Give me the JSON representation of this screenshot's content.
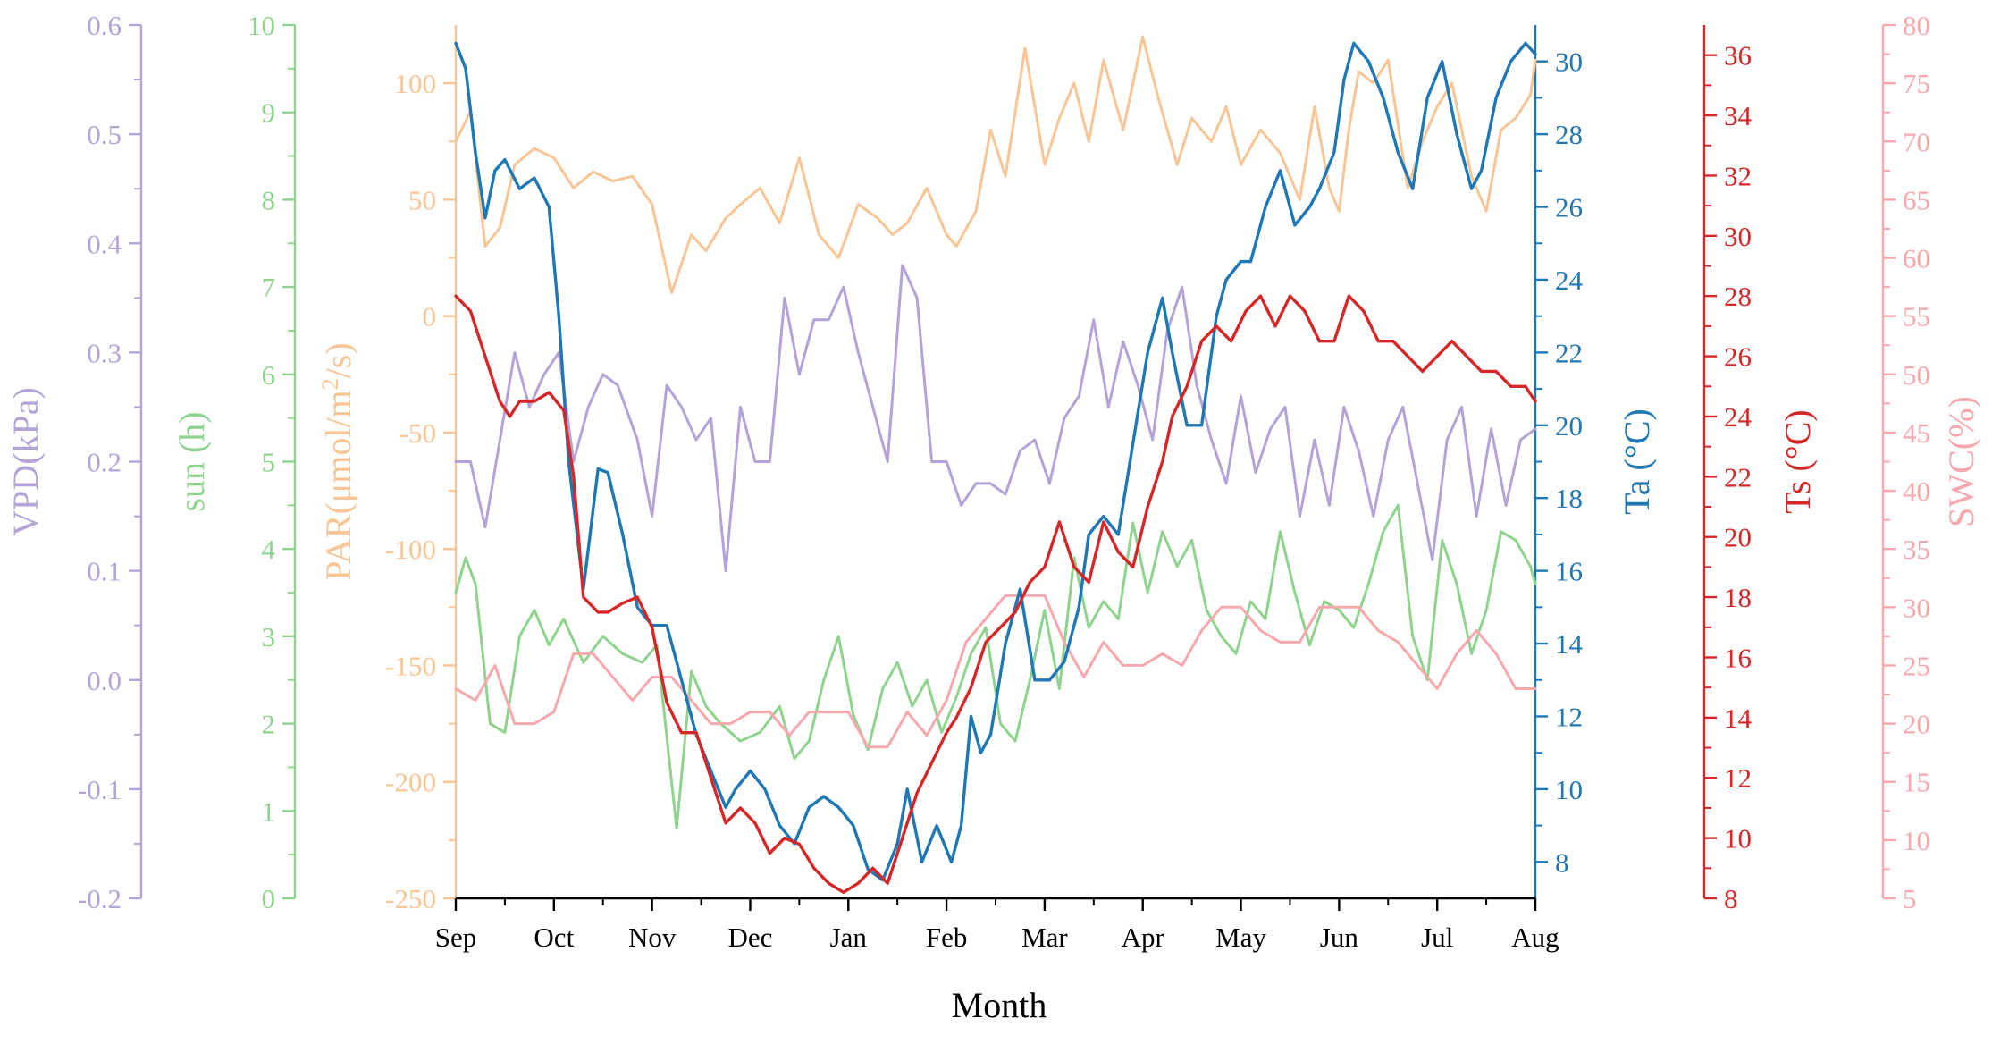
{
  "chart_data": {
    "type": "line",
    "title": "",
    "xlabel": "Month",
    "x_categories": [
      "Sep",
      "Oct",
      "Nov",
      "Dec",
      "Jan",
      "Feb",
      "Mar",
      "Apr",
      "May",
      "Jun",
      "Jul",
      "Aug"
    ],
    "x_range": [
      0,
      11
    ],
    "axes": [
      {
        "id": "vpd",
        "label": "VPD(kPa)",
        "label_parts": [
          "VPD(kPa)"
        ],
        "color": "#b3a3d6",
        "ylim": [
          -0.2,
          0.6
        ],
        "ticks": [
          -0.2,
          -0.1,
          0.0,
          0.1,
          0.2,
          0.3,
          0.4,
          0.5,
          0.6
        ],
        "tick_labels": [
          "-0.2",
          "-0.1",
          "0.0",
          "0.1",
          "0.2",
          "0.3",
          "0.4",
          "0.5",
          "0.6"
        ]
      },
      {
        "id": "sun",
        "label": "sun (h)",
        "label_parts": [
          "sun (h)"
        ],
        "color": "#8fd38f",
        "ylim": [
          0,
          10
        ],
        "ticks": [
          0,
          1,
          2,
          3,
          4,
          5,
          6,
          7,
          8,
          9,
          10
        ],
        "tick_labels": [
          "0",
          "1",
          "2",
          "3",
          "4",
          "5",
          "6",
          "7",
          "8",
          "9",
          "10"
        ]
      },
      {
        "id": "par",
        "label": "PAR(μmol/m2/s)",
        "label_parts": [
          "PAR(μmol/m",
          "2",
          "/s)"
        ],
        "color": "#f8c596",
        "ylim": [
          -250,
          125
        ],
        "ticks": [
          -250,
          -200,
          -150,
          -100,
          -50,
          0,
          50,
          100
        ],
        "tick_labels": [
          "-250",
          "-200",
          "-150",
          "-100",
          "-50",
          "0",
          "50",
          "100"
        ]
      },
      {
        "id": "ta",
        "label": "Ta (°C)",
        "label_parts": [
          "Ta (°C)"
        ],
        "color": "#1f77b4",
        "ylim": [
          7,
          31
        ],
        "ticks": [
          8,
          10,
          12,
          14,
          16,
          18,
          20,
          22,
          24,
          26,
          28,
          30
        ],
        "tick_labels": [
          "8",
          "10",
          "12",
          "14",
          "16",
          "18",
          "20",
          "22",
          "24",
          "26",
          "28",
          "30"
        ]
      },
      {
        "id": "ts",
        "label": "Ts (°C)",
        "label_parts": [
          "Ts (°C)"
        ],
        "color": "#d62728",
        "ylim": [
          8,
          37
        ],
        "ticks": [
          8,
          10,
          12,
          14,
          16,
          18,
          20,
          22,
          24,
          26,
          28,
          30,
          32,
          34,
          36
        ],
        "tick_labels": [
          "8",
          "10",
          "12",
          "14",
          "16",
          "18",
          "20",
          "22",
          "24",
          "26",
          "28",
          "30",
          "32",
          "34",
          "36"
        ]
      },
      {
        "id": "swc",
        "label": "SWC(%)",
        "label_parts": [
          "SWC(%)"
        ],
        "color": "#f6a8ad",
        "ylim": [
          5,
          80
        ],
        "ticks": [
          5,
          10,
          15,
          20,
          25,
          30,
          35,
          40,
          45,
          50,
          55,
          60,
          65,
          70,
          75,
          80
        ],
        "tick_labels": [
          "5",
          "10",
          "15",
          "20",
          "25",
          "30",
          "35",
          "40",
          "45",
          "50",
          "55",
          "60",
          "65",
          "70",
          "75",
          "80"
        ]
      }
    ],
    "series": [
      {
        "name": "PAR",
        "axis": "par",
        "color": "#f8c596",
        "x": [
          0,
          0.15,
          0.3,
          0.45,
          0.6,
          0.8,
          1.0,
          1.2,
          1.4,
          1.6,
          1.8,
          2.0,
          2.2,
          2.4,
          2.55,
          2.75,
          2.9,
          3.1,
          3.3,
          3.5,
          3.7,
          3.9,
          4.1,
          4.3,
          4.45,
          4.6,
          4.8,
          5.0,
          5.1,
          5.3,
          5.45,
          5.6,
          5.8,
          6.0,
          6.15,
          6.3,
          6.45,
          6.6,
          6.8,
          7.0,
          7.15,
          7.35,
          7.5,
          7.7,
          7.85,
          8.0,
          8.2,
          8.4,
          8.6,
          8.75,
          8.9,
          9.0,
          9.1,
          9.2,
          9.35,
          9.5,
          9.7,
          9.85,
          10.0,
          10.15,
          10.35,
          10.5,
          10.65,
          10.8,
          10.95,
          11.0
        ],
        "values": [
          75,
          88,
          30,
          38,
          65,
          72,
          68,
          55,
          62,
          58,
          60,
          48,
          10,
          35,
          28,
          42,
          48,
          55,
          40,
          68,
          35,
          25,
          48,
          42,
          35,
          40,
          55,
          35,
          30,
          45,
          80,
          60,
          115,
          65,
          85,
          100,
          75,
          110,
          80,
          120,
          95,
          65,
          85,
          75,
          90,
          65,
          80,
          70,
          50,
          90,
          55,
          45,
          80,
          105,
          100,
          110,
          55,
          75,
          90,
          100,
          60,
          45,
          80,
          85,
          95,
          110
        ]
      },
      {
        "name": "sun (h)",
        "axis": "sun",
        "color": "#8fd38f",
        "x": [
          0,
          0.1,
          0.2,
          0.35,
          0.5,
          0.65,
          0.8,
          0.95,
          1.1,
          1.3,
          1.5,
          1.7,
          1.9,
          2.05,
          2.25,
          2.4,
          2.55,
          2.7,
          2.9,
          3.1,
          3.3,
          3.45,
          3.6,
          3.75,
          3.9,
          4.05,
          4.2,
          4.35,
          4.5,
          4.65,
          4.8,
          4.95,
          5.1,
          5.25,
          5.4,
          5.55,
          5.7,
          5.85,
          6.0,
          6.15,
          6.3,
          6.45,
          6.6,
          6.75,
          6.9,
          7.05,
          7.2,
          7.35,
          7.5,
          7.65,
          7.8,
          7.95,
          8.1,
          8.25,
          8.4,
          8.55,
          8.7,
          8.85,
          9.0,
          9.15,
          9.3,
          9.45,
          9.6,
          9.75,
          9.9,
          10.05,
          10.2,
          10.35,
          10.5,
          10.65,
          10.8,
          10.95,
          11.0
        ],
        "values": [
          3.5,
          3.9,
          3.6,
          2.0,
          1.9,
          3.0,
          3.3,
          2.9,
          3.2,
          2.7,
          3.0,
          2.8,
          2.7,
          2.9,
          0.8,
          2.6,
          2.2,
          2.0,
          1.8,
          1.9,
          2.2,
          1.6,
          1.8,
          2.5,
          3.0,
          2.1,
          1.7,
          2.4,
          2.7,
          2.2,
          2.5,
          1.9,
          2.3,
          2.8,
          3.1,
          2.0,
          1.8,
          2.5,
          3.3,
          2.4,
          3.9,
          3.1,
          3.4,
          3.2,
          4.3,
          3.5,
          4.2,
          3.8,
          4.1,
          3.3,
          3.0,
          2.8,
          3.4,
          3.2,
          4.2,
          3.5,
          2.9,
          3.4,
          3.3,
          3.1,
          3.6,
          4.2,
          4.5,
          3.0,
          2.5,
          4.1,
          3.6,
          2.8,
          3.3,
          4.2,
          4.1,
          3.8,
          3.6
        ]
      },
      {
        "name": "VPD",
        "axis": "vpd",
        "color": "#b3a3d6",
        "x": [
          0,
          0.15,
          0.3,
          0.45,
          0.6,
          0.75,
          0.9,
          1.05,
          1.2,
          1.35,
          1.5,
          1.65,
          1.85,
          2.0,
          2.15,
          2.3,
          2.45,
          2.6,
          2.75,
          2.9,
          3.05,
          3.2,
          3.35,
          3.5,
          3.65,
          3.8,
          3.95,
          4.1,
          4.25,
          4.4,
          4.55,
          4.7,
          4.85,
          5.0,
          5.15,
          5.3,
          5.45,
          5.6,
          5.75,
          5.9,
          6.05,
          6.2,
          6.35,
          6.5,
          6.65,
          6.8,
          6.95,
          7.1,
          7.25,
          7.4,
          7.55,
          7.7,
          7.85,
          8.0,
          8.15,
          8.3,
          8.45,
          8.6,
          8.75,
          8.9,
          9.05,
          9.2,
          9.35,
          9.5,
          9.65,
          9.8,
          9.95,
          10.1,
          10.25,
          10.4,
          10.55,
          10.7,
          10.85,
          11.0
        ],
        "values": [
          0.2,
          0.2,
          0.14,
          0.22,
          0.3,
          0.25,
          0.28,
          0.3,
          0.2,
          0.25,
          0.28,
          0.27,
          0.22,
          0.15,
          0.27,
          0.25,
          0.22,
          0.24,
          0.1,
          0.25,
          0.2,
          0.2,
          0.35,
          0.28,
          0.33,
          0.33,
          0.36,
          0.3,
          0.25,
          0.2,
          0.38,
          0.35,
          0.2,
          0.2,
          0.16,
          0.18,
          0.18,
          0.17,
          0.21,
          0.22,
          0.18,
          0.24,
          0.26,
          0.33,
          0.25,
          0.31,
          0.27,
          0.22,
          0.32,
          0.36,
          0.27,
          0.22,
          0.18,
          0.26,
          0.19,
          0.23,
          0.25,
          0.15,
          0.22,
          0.16,
          0.25,
          0.21,
          0.15,
          0.22,
          0.25,
          0.18,
          0.11,
          0.22,
          0.25,
          0.15,
          0.23,
          0.16,
          0.22,
          0.23
        ]
      },
      {
        "name": "SWC",
        "axis": "swc",
        "color": "#f6a8ad",
        "x": [
          0,
          0.2,
          0.4,
          0.6,
          0.8,
          1.0,
          1.2,
          1.4,
          1.6,
          1.8,
          2.0,
          2.2,
          2.4,
          2.6,
          2.8,
          3.0,
          3.2,
          3.4,
          3.6,
          3.8,
          4.0,
          4.2,
          4.4,
          4.6,
          4.8,
          5.0,
          5.2,
          5.4,
          5.6,
          5.8,
          6.0,
          6.2,
          6.4,
          6.6,
          6.8,
          7.0,
          7.2,
          7.4,
          7.6,
          7.8,
          8.0,
          8.2,
          8.4,
          8.6,
          8.8,
          9.0,
          9.2,
          9.4,
          9.6,
          9.8,
          10.0,
          10.2,
          10.4,
          10.6,
          10.8,
          11.0
        ],
        "values": [
          23,
          22,
          25,
          20,
          20,
          21,
          26,
          26,
          24,
          22,
          24,
          24,
          22,
          20,
          20,
          21,
          21,
          19,
          21,
          21,
          21,
          18,
          18,
          21,
          19,
          22,
          27,
          29,
          31,
          31,
          31,
          27,
          24,
          27,
          25,
          25,
          26,
          25,
          28,
          30,
          30,
          28,
          27,
          27,
          30,
          30,
          30,
          28,
          27,
          25,
          23,
          26,
          28,
          26,
          23,
          23
        ]
      },
      {
        "name": "Ta",
        "axis": "ta",
        "color": "#1f77b4",
        "x": [
          0,
          0.1,
          0.2,
          0.3,
          0.4,
          0.5,
          0.65,
          0.8,
          0.95,
          1.05,
          1.15,
          1.3,
          1.45,
          1.55,
          1.7,
          1.85,
          2.0,
          2.15,
          2.3,
          2.45,
          2.6,
          2.75,
          2.85,
          3.0,
          3.15,
          3.3,
          3.45,
          3.6,
          3.75,
          3.9,
          4.05,
          4.2,
          4.35,
          4.5,
          4.6,
          4.75,
          4.9,
          5.05,
          5.15,
          5.25,
          5.35,
          5.45,
          5.6,
          5.75,
          5.9,
          6.05,
          6.2,
          6.35,
          6.45,
          6.6,
          6.75,
          6.9,
          7.05,
          7.2,
          7.3,
          7.45,
          7.6,
          7.75,
          7.85,
          8.0,
          8.1,
          8.25,
          8.4,
          8.55,
          8.7,
          8.8,
          8.95,
          9.05,
          9.15,
          9.3,
          9.45,
          9.6,
          9.75,
          9.9,
          10.05,
          10.2,
          10.35,
          10.45,
          10.6,
          10.75,
          10.9,
          11.0
        ],
        "values": [
          30.5,
          29.8,
          27.5,
          25.7,
          27.0,
          27.3,
          26.5,
          26.8,
          26.0,
          23.0,
          19.0,
          15.5,
          18.8,
          18.7,
          17.0,
          15.0,
          14.5,
          14.5,
          13.0,
          11.5,
          10.5,
          9.5,
          10.0,
          10.5,
          10.0,
          9.0,
          8.5,
          9.5,
          9.8,
          9.5,
          9.0,
          7.8,
          7.5,
          8.5,
          10.0,
          8.0,
          9.0,
          8.0,
          9.0,
          12.0,
          11.0,
          11.5,
          14.0,
          15.5,
          13.0,
          13.0,
          13.5,
          15.0,
          17.0,
          17.5,
          17.0,
          19.5,
          22.0,
          23.5,
          22.0,
          20.0,
          20.0,
          23.0,
          24.0,
          24.5,
          24.5,
          26.0,
          27.0,
          25.5,
          26.0,
          26.5,
          27.5,
          29.5,
          30.5,
          30.0,
          29.0,
          27.5,
          26.5,
          29.0,
          30.0,
          28.0,
          26.5,
          27.0,
          29.0,
          30.0,
          30.5,
          30.2
        ]
      },
      {
        "name": "Ts",
        "axis": "ts",
        "color": "#d62728",
        "x": [
          0,
          0.15,
          0.3,
          0.45,
          0.55,
          0.65,
          0.8,
          0.95,
          1.1,
          1.2,
          1.3,
          1.45,
          1.55,
          1.7,
          1.85,
          2.0,
          2.15,
          2.3,
          2.45,
          2.6,
          2.75,
          2.9,
          3.05,
          3.2,
          3.35,
          3.5,
          3.65,
          3.8,
          3.95,
          4.1,
          4.25,
          4.4,
          4.55,
          4.7,
          4.85,
          5.0,
          5.1,
          5.25,
          5.4,
          5.55,
          5.7,
          5.85,
          6.0,
          6.15,
          6.3,
          6.45,
          6.6,
          6.75,
          6.9,
          7.05,
          7.2,
          7.3,
          7.45,
          7.6,
          7.75,
          7.9,
          8.05,
          8.2,
          8.35,
          8.5,
          8.65,
          8.8,
          8.95,
          9.1,
          9.25,
          9.4,
          9.55,
          9.7,
          9.85,
          10.0,
          10.15,
          10.3,
          10.45,
          10.6,
          10.75,
          10.9,
          11.0
        ],
        "values": [
          28.0,
          27.5,
          26.0,
          24.5,
          24.0,
          24.5,
          24.5,
          24.8,
          24.2,
          22.0,
          18.0,
          17.5,
          17.5,
          17.8,
          18.0,
          17.0,
          14.5,
          13.5,
          13.5,
          12.0,
          10.5,
          11.0,
          10.5,
          9.5,
          10.0,
          9.8,
          9.0,
          8.5,
          8.2,
          8.5,
          9.0,
          8.5,
          10.0,
          11.5,
          12.5,
          13.5,
          14.0,
          15.0,
          16.5,
          17.0,
          17.5,
          18.5,
          19.0,
          20.5,
          19.0,
          18.5,
          20.5,
          19.5,
          19.0,
          21.0,
          22.5,
          24.0,
          25.0,
          26.5,
          27.0,
          26.5,
          27.5,
          28.0,
          27.0,
          28.0,
          27.5,
          26.5,
          26.5,
          28.0,
          27.5,
          26.5,
          26.5,
          26.0,
          25.5,
          26.0,
          26.5,
          26.0,
          25.5,
          25.5,
          25.0,
          25.0,
          24.5
        ]
      }
    ]
  }
}
